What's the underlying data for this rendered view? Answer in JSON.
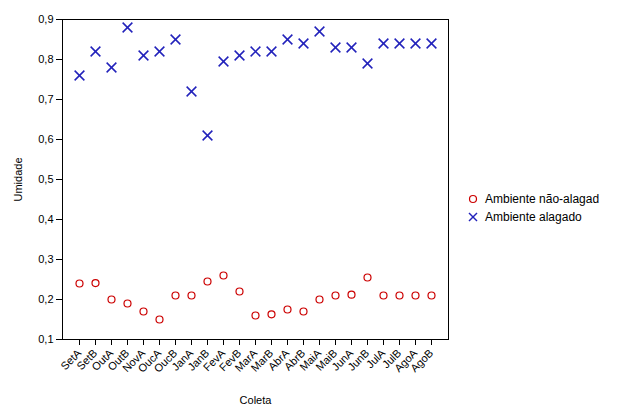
{
  "chart_data": {
    "type": "scatter",
    "categories": [
      "SetA",
      "SetB",
      "OutA",
      "OutB",
      "NovA",
      "OucA",
      "OucB",
      "JanA",
      "JanB",
      "FevA",
      "FevB",
      "MarA",
      "MarB",
      "AbrA",
      "AbrB",
      "MaiA",
      "MaiB",
      "JunA",
      "JunB",
      "JulA",
      "JulB",
      "AgoA",
      "AgoB"
    ],
    "series": [
      {
        "name": "Ambiente não-alagad",
        "color": "#cc0000",
        "marker": "open_circle",
        "values": [
          0.24,
          0.241,
          0.2,
          0.19,
          0.17,
          0.15,
          0.21,
          0.21,
          0.245,
          0.26,
          0.22,
          0.16,
          0.163,
          0.175,
          0.17,
          0.2,
          0.21,
          0.212,
          0.255,
          0.21,
          0.21,
          0.21,
          0.21
        ]
      },
      {
        "name": "Ambiente alagado",
        "color": "#2222bb",
        "marker": "x",
        "values": [
          0.76,
          0.82,
          0.78,
          0.88,
          0.81,
          0.82,
          0.85,
          0.72,
          0.61,
          0.795,
          0.81,
          0.82,
          0.82,
          0.85,
          0.84,
          0.87,
          0.83,
          0.83,
          0.79,
          0.84,
          0.84,
          0.84,
          0.84
        ]
      }
    ],
    "xlabel": "Coleta",
    "ylabel": "Umidade",
    "ylim": [
      0.1,
      0.9
    ],
    "yticks": [
      {
        "value": 0.1,
        "label": "0,1"
      },
      {
        "value": 0.2,
        "label": "0,2"
      },
      {
        "value": 0.3,
        "label": "0,3"
      },
      {
        "value": 0.4,
        "label": "0,4"
      },
      {
        "value": 0.5,
        "label": "0,5"
      },
      {
        "value": 0.6,
        "label": "0,6"
      },
      {
        "value": 0.7,
        "label": "0,7"
      },
      {
        "value": 0.8,
        "label": "0,8"
      },
      {
        "value": 0.9,
        "label": "0,9"
      }
    ],
    "grid": false,
    "legend": "right"
  }
}
